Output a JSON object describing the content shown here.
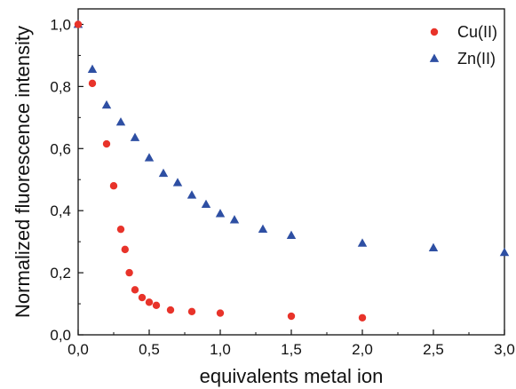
{
  "chart_data": {
    "type": "scatter",
    "xlabel": "equivalents metal ion",
    "ylabel": "Normalized fluorescence intensity",
    "xlim": [
      0,
      3.0
    ],
    "ylim": [
      0,
      1.05
    ],
    "x_ticks": [
      "0,0",
      "0,5",
      "1,0",
      "1,5",
      "2,0",
      "2,5",
      "3,0"
    ],
    "y_ticks": [
      "0,0",
      "0,2",
      "0,4",
      "0,6",
      "0,8",
      "1,0"
    ],
    "grid": false,
    "legend_position": "top-right",
    "series": [
      {
        "name": "Cu(II)",
        "marker": "circle",
        "color": "#e8332a",
        "points": [
          [
            0.0,
            1.0
          ],
          [
            0.1,
            0.81
          ],
          [
            0.2,
            0.615
          ],
          [
            0.25,
            0.48
          ],
          [
            0.3,
            0.34
          ],
          [
            0.33,
            0.275
          ],
          [
            0.36,
            0.2
          ],
          [
            0.4,
            0.145
          ],
          [
            0.45,
            0.12
          ],
          [
            0.5,
            0.105
          ],
          [
            0.55,
            0.095
          ],
          [
            0.65,
            0.08
          ],
          [
            0.8,
            0.075
          ],
          [
            1.0,
            0.07
          ],
          [
            1.5,
            0.06
          ],
          [
            2.0,
            0.055
          ]
        ]
      },
      {
        "name": "Zn(II)",
        "marker": "triangle",
        "color": "#2e4fa3",
        "points": [
          [
            0.0,
            1.0
          ],
          [
            0.1,
            0.855
          ],
          [
            0.2,
            0.74
          ],
          [
            0.3,
            0.685
          ],
          [
            0.4,
            0.635
          ],
          [
            0.5,
            0.57
          ],
          [
            0.6,
            0.52
          ],
          [
            0.7,
            0.49
          ],
          [
            0.8,
            0.45
          ],
          [
            0.9,
            0.42
          ],
          [
            1.0,
            0.39
          ],
          [
            1.1,
            0.37
          ],
          [
            1.3,
            0.34
          ],
          [
            1.5,
            0.32
          ],
          [
            2.0,
            0.295
          ],
          [
            2.5,
            0.28
          ],
          [
            3.0,
            0.265
          ]
        ]
      }
    ]
  }
}
